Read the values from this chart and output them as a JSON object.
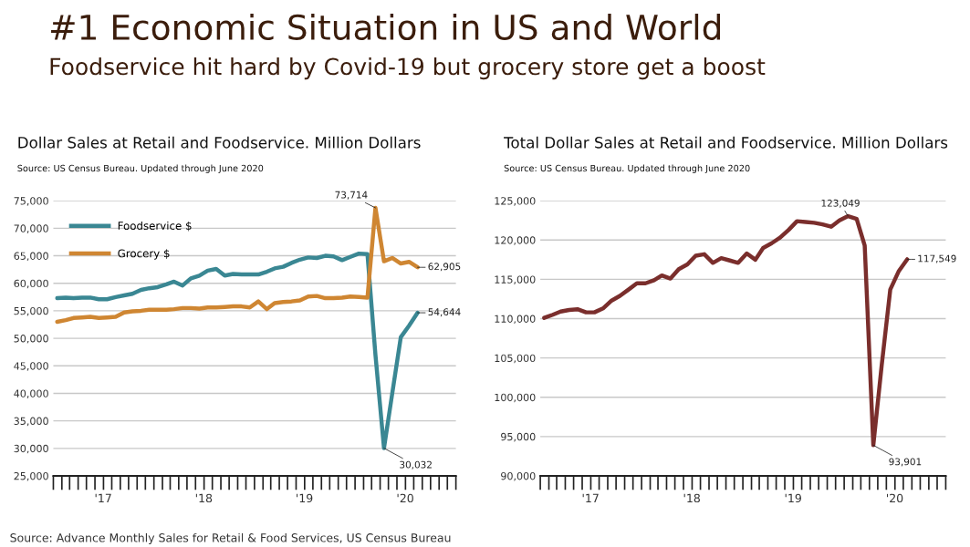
{
  "chart_data": [
    {
      "type": "line",
      "title": "Dollar Sales at Retail and Foodservice. Million Dollars",
      "subtitle": "Source: US Census Bureau. Updated through June 2020",
      "annotations": [
        "#1 Economic Situation in US and World",
        "Foodservice hit hard by Covid-19 but grocery store get a boost",
        "Source: Advance Monthly Sales for Retail & Food Services, US Census Bureau",
        {
          "text": "73,714",
          "x": "2020-03-15",
          "y": 73714
        },
        {
          "text": "62,905",
          "x": "2020-08-15",
          "y": 62905
        },
        {
          "text": "54,644",
          "x": "2020-08-15",
          "y": 54644
        },
        {
          "text": "30,032",
          "x": "2020-04-15",
          "y": 30032
        }
      ],
      "x": [
        "2017-01-15",
        "2017-02-15",
        "2017-03-15",
        "2017-04-15",
        "2017-05-15",
        "2017-06-15",
        "2017-07-15",
        "2017-08-15",
        "2017-09-15",
        "2017-10-15",
        "2017-11-15",
        "2017-12-15",
        "2018-01-15",
        "2018-02-15",
        "2018-03-15",
        "2018-04-15",
        "2018-05-15",
        "2018-06-15",
        "2018-07-15",
        "2018-08-15",
        "2018-09-15",
        "2018-10-15",
        "2018-11-15",
        "2018-12-15",
        "2019-01-15",
        "2019-02-15",
        "2019-03-15",
        "2019-04-15",
        "2019-05-15",
        "2019-06-15",
        "2019-07-15",
        "2019-08-15",
        "2019-09-15",
        "2019-10-15",
        "2019-11-15",
        "2019-12-15",
        "2020-01-15",
        "2020-02-15",
        "2020-03-15",
        "2020-04-15",
        "2020-05-15",
        "2020-06-15",
        "2020-07-15",
        "2020-08-15"
      ],
      "series": [
        {
          "name": "Foodservice $",
          "color": "#3a8793",
          "values": [
            57300,
            57400,
            57300,
            57400,
            57400,
            57100,
            57100,
            57500,
            57800,
            58100,
            58800,
            59100,
            59300,
            59800,
            60300,
            59600,
            60900,
            61400,
            62300,
            62600,
            61400,
            61700,
            61600,
            61600,
            61600,
            62100,
            62700,
            63000,
            63700,
            64300,
            64700,
            64600,
            65000,
            64900,
            64200,
            64800,
            65400,
            65300,
            47000,
            30032,
            40000,
            50200,
            52300,
            54644
          ]
        },
        {
          "name": "Grocery $",
          "color": "#cf8632",
          "values": [
            53000,
            53300,
            53700,
            53800,
            53900,
            53700,
            53800,
            53900,
            54700,
            54900,
            55000,
            55200,
            55200,
            55200,
            55300,
            55500,
            55500,
            55400,
            55600,
            55600,
            55700,
            55800,
            55800,
            55600,
            56700,
            55300,
            56400,
            56600,
            56700,
            56900,
            57600,
            57700,
            57300,
            57300,
            57400,
            57600,
            57500,
            57400,
            73714,
            64000,
            64600,
            63600,
            63900,
            62905
          ]
        }
      ],
      "xlim": [
        "2017-01-01",
        "2021-01-01"
      ],
      "xticks": [
        {
          "value": "2017-07-01",
          "label": "'17"
        },
        {
          "value": "2018-07-01",
          "label": "'18"
        },
        {
          "value": "2019-07-01",
          "label": "'19"
        },
        {
          "value": "2020-07-01",
          "label": "'20"
        },
        {
          "value": "2017-01-01",
          "label": null
        },
        {
          "value": "2017-02-01",
          "label": null
        },
        {
          "value": "2017-03-01",
          "label": null
        },
        {
          "value": "2017-04-01",
          "label": null
        },
        {
          "value": "2017-05-01",
          "label": null
        },
        {
          "value": "2017-06-01",
          "label": null
        },
        {
          "value": "2017-07-02",
          "label": null
        },
        {
          "value": "2017-08-01",
          "label": null
        },
        {
          "value": "2017-09-01",
          "label": null
        },
        {
          "value": "2017-10-01",
          "label": null
        },
        {
          "value": "2017-11-01",
          "label": null
        },
        {
          "value": "2017-12-01",
          "label": null
        },
        {
          "value": "2018-01-01",
          "label": null
        },
        {
          "value": "2018-02-01",
          "label": null
        },
        {
          "value": "2018-03-01",
          "label": null
        },
        {
          "value": "2018-04-01",
          "label": null
        },
        {
          "value": "2018-05-01",
          "label": null
        },
        {
          "value": "2018-06-01",
          "label": null
        },
        {
          "value": "2018-07-02",
          "label": null
        },
        {
          "value": "2018-08-01",
          "label": null
        },
        {
          "value": "2018-09-01",
          "label": null
        },
        {
          "value": "2018-10-01",
          "label": null
        },
        {
          "value": "2018-11-01",
          "label": null
        },
        {
          "value": "2018-12-01",
          "label": null
        },
        {
          "value": "2019-01-01",
          "label": null
        },
        {
          "value": "2019-02-01",
          "label": null
        },
        {
          "value": "2019-03-01",
          "label": null
        },
        {
          "value": "2019-04-01",
          "label": null
        },
        {
          "value": "2019-05-01",
          "label": null
        },
        {
          "value": "2019-06-01",
          "label": null
        },
        {
          "value": "2019-07-02",
          "label": null
        },
        {
          "value": "2019-08-01",
          "label": null
        },
        {
          "value": "2019-09-01",
          "label": null
        },
        {
          "value": "2019-10-01",
          "label": null
        },
        {
          "value": "2019-11-01",
          "label": null
        },
        {
          "value": "2019-12-01",
          "label": null
        },
        {
          "value": "2020-01-01",
          "label": null
        },
        {
          "value": "2020-02-01",
          "label": null
        },
        {
          "value": "2020-03-01",
          "label": null
        },
        {
          "value": "2020-04-01",
          "label": null
        },
        {
          "value": "2020-05-01",
          "label": null
        },
        {
          "value": "2020-06-01",
          "label": null
        },
        {
          "value": "2020-07-02",
          "label": null
        },
        {
          "value": "2020-08-01",
          "label": null
        },
        {
          "value": "2020-09-01",
          "label": null
        },
        {
          "value": "2020-10-01",
          "label": null
        },
        {
          "value": "2020-11-01",
          "label": null
        },
        {
          "value": "2020-12-01",
          "label": null
        },
        {
          "value": "2021-01-01",
          "label": null
        }
      ],
      "ylim": [
        25000,
        75000
      ],
      "yticks": [
        {
          "value": 25000,
          "label": "25,000"
        },
        {
          "value": 30000,
          "label": "30,000"
        },
        {
          "value": 35000,
          "label": "35,000"
        },
        {
          "value": 40000,
          "label": "40,000"
        },
        {
          "value": 45000,
          "label": "45,000"
        },
        {
          "value": 50000,
          "label": "50,000"
        },
        {
          "value": 55000,
          "label": "55,000"
        },
        {
          "value": 60000,
          "label": "60,000"
        },
        {
          "value": 65000,
          "label": "65,000"
        },
        {
          "value": 70000,
          "label": "70,000"
        },
        {
          "value": 75000,
          "label": "75,000"
        }
      ],
      "grid": "y",
      "legend": "top left"
    },
    {
      "type": "line",
      "title": "Total Dollar Sales at Retail and Foodservice. Million Dollars",
      "subtitle": "Source: US Census Bureau. Updated through June 2020",
      "annotations": [
        {
          "text": "123,049",
          "x": "2020-01-15",
          "y": 123049
        },
        {
          "text": "117,549",
          "x": "2020-08-15",
          "y": 117549
        },
        {
          "text": "93,901",
          "x": "2020-04-15",
          "y": 93901
        }
      ],
      "x": [
        "2017-01-15",
        "2017-02-15",
        "2017-03-15",
        "2017-04-15",
        "2017-05-15",
        "2017-06-15",
        "2017-07-15",
        "2017-08-15",
        "2017-09-15",
        "2017-10-15",
        "2017-11-15",
        "2017-12-15",
        "2018-01-15",
        "2018-02-15",
        "2018-03-15",
        "2018-04-15",
        "2018-05-15",
        "2018-06-15",
        "2018-07-15",
        "2018-08-15",
        "2018-09-15",
        "2018-10-15",
        "2018-11-15",
        "2018-12-15",
        "2019-01-15",
        "2019-02-15",
        "2019-03-15",
        "2019-04-15",
        "2019-05-15",
        "2019-06-15",
        "2019-07-15",
        "2019-08-15",
        "2019-09-15",
        "2019-10-15",
        "2019-11-15",
        "2019-12-15",
        "2020-01-15",
        "2020-02-15",
        "2020-03-15",
        "2020-04-15",
        "2020-05-15",
        "2020-06-15",
        "2020-07-15",
        "2020-08-15"
      ],
      "series": [
        {
          "color": "#7a2e2c",
          "values": [
            110100,
            110500,
            110900,
            111100,
            111200,
            110800,
            110800,
            111300,
            112300,
            112900,
            113700,
            114500,
            114500,
            114900,
            115500,
            115100,
            116300,
            116900,
            118000,
            118200,
            117100,
            117700,
            117400,
            117100,
            118300,
            117500,
            119000,
            119600,
            120300,
            121300,
            122400,
            122300,
            122200,
            122000,
            121700,
            122500,
            123049,
            122700,
            119300,
            93901,
            104000,
            113700,
            116000,
            117549
          ]
        }
      ],
      "xlim": [
        "2017-01-01",
        "2021-01-01"
      ],
      "xticks": [
        {
          "value": "2017-07-01",
          "label": "'17"
        },
        {
          "value": "2018-07-01",
          "label": "'18"
        },
        {
          "value": "2019-07-01",
          "label": "'19"
        },
        {
          "value": "2020-07-01",
          "label": "'20"
        },
        {
          "value": "2017-01-01",
          "label": null
        },
        {
          "value": "2017-02-01",
          "label": null
        },
        {
          "value": "2017-03-01",
          "label": null
        },
        {
          "value": "2017-04-01",
          "label": null
        },
        {
          "value": "2017-05-01",
          "label": null
        },
        {
          "value": "2017-06-01",
          "label": null
        },
        {
          "value": "2017-07-02",
          "label": null
        },
        {
          "value": "2017-08-01",
          "label": null
        },
        {
          "value": "2017-09-01",
          "label": null
        },
        {
          "value": "2017-10-01",
          "label": null
        },
        {
          "value": "2017-11-01",
          "label": null
        },
        {
          "value": "2017-12-01",
          "label": null
        },
        {
          "value": "2018-01-01",
          "label": null
        },
        {
          "value": "2018-02-01",
          "label": null
        },
        {
          "value": "2018-03-01",
          "label": null
        },
        {
          "value": "2018-04-01",
          "label": null
        },
        {
          "value": "2018-05-01",
          "label": null
        },
        {
          "value": "2018-06-01",
          "label": null
        },
        {
          "value": "2018-07-02",
          "label": null
        },
        {
          "value": "2018-08-01",
          "label": null
        },
        {
          "value": "2018-09-01",
          "label": null
        },
        {
          "value": "2018-10-01",
          "label": null
        },
        {
          "value": "2018-11-01",
          "label": null
        },
        {
          "value": "2018-12-01",
          "label": null
        },
        {
          "value": "2019-01-01",
          "label": null
        },
        {
          "value": "2019-02-01",
          "label": null
        },
        {
          "value": "2019-03-01",
          "label": null
        },
        {
          "value": "2019-04-01",
          "label": null
        },
        {
          "value": "2019-05-01",
          "label": null
        },
        {
          "value": "2019-06-01",
          "label": null
        },
        {
          "value": "2019-07-02",
          "label": null
        },
        {
          "value": "2019-08-01",
          "label": null
        },
        {
          "value": "2019-09-01",
          "label": null
        },
        {
          "value": "2019-10-01",
          "label": null
        },
        {
          "value": "2019-11-01",
          "label": null
        },
        {
          "value": "2019-12-01",
          "label": null
        },
        {
          "value": "2020-01-01",
          "label": null
        },
        {
          "value": "2020-02-01",
          "label": null
        },
        {
          "value": "2020-03-01",
          "label": null
        },
        {
          "value": "2020-04-01",
          "label": null
        },
        {
          "value": "2020-05-01",
          "label": null
        },
        {
          "value": "2020-06-01",
          "label": null
        },
        {
          "value": "2020-07-02",
          "label": null
        },
        {
          "value": "2020-08-01",
          "label": null
        },
        {
          "value": "2020-09-01",
          "label": null
        },
        {
          "value": "2020-10-01",
          "label": null
        },
        {
          "value": "2020-11-01",
          "label": null
        },
        {
          "value": "2020-12-01",
          "label": null
        },
        {
          "value": "2021-01-01",
          "label": null
        }
      ],
      "ylim": [
        90000,
        125000
      ],
      "yticks": [
        {
          "value": 90000,
          "label": "90,000"
        },
        {
          "value": 95000,
          "label": "95,000"
        },
        {
          "value": 100000,
          "label": "100,000"
        },
        {
          "value": 105000,
          "label": "105,000"
        },
        {
          "value": 110000,
          "label": "110,000"
        },
        {
          "value": 115000,
          "label": "115,000"
        },
        {
          "value": 120000,
          "label": "120,000"
        },
        {
          "value": 125000,
          "label": "125,000"
        }
      ],
      "grid": "y"
    }
  ]
}
